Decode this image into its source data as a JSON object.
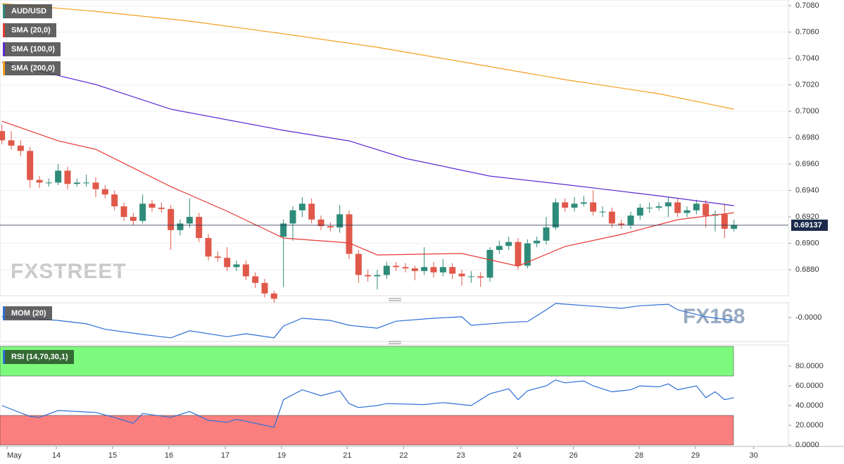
{
  "chart_data": [
    {
      "type": "candlestick",
      "title": "AUD/USD",
      "watermark": "FXSTREET",
      "up_color": "#2e8b7a",
      "down_color": "#e0584a",
      "xlim": [
        -0.2,
        83.8
      ],
      "ylim": [
        0.68603,
        0.70843
      ],
      "yticks": [
        {
          "value": 0.708,
          "label": "0.7080"
        },
        {
          "value": 0.706,
          "label": "0.7060"
        },
        {
          "value": 0.704,
          "label": "0.7040"
        },
        {
          "value": 0.702,
          "label": "0.7020"
        },
        {
          "value": 0.7,
          "label": "0.7000"
        },
        {
          "value": 0.698,
          "label": "0.6980"
        },
        {
          "value": 0.696,
          "label": "0.6960"
        },
        {
          "value": 0.694,
          "label": "0.6940"
        },
        {
          "value": 0.692,
          "label": "0.6920"
        },
        {
          "value": 0.69,
          "label": "0.6900"
        },
        {
          "value": 0.688,
          "label": "0.6880"
        }
      ],
      "grid": true,
      "last_price": 0.69137,
      "x": [
        0,
        1,
        2,
        3,
        4,
        5,
        6,
        7,
        8,
        9,
        10,
        11,
        12,
        13,
        14,
        15,
        16,
        17,
        18,
        19,
        20,
        21,
        22,
        23,
        24,
        25,
        26,
        27,
        28,
        29,
        30,
        31,
        32,
        33,
        34,
        35,
        36,
        37,
        38,
        39,
        40,
        41,
        42,
        43,
        44,
        45,
        46,
        47,
        48,
        49,
        50,
        51,
        52,
        53,
        54,
        55,
        56,
        57,
        58,
        59,
        60,
        61,
        62,
        63,
        64,
        65,
        66,
        67,
        68,
        69,
        70,
        71,
        72,
        73,
        74,
        75,
        76,
        77,
        78
      ],
      "open": [
        0.6985,
        0.6978,
        0.6974,
        0.697,
        0.6948,
        0.6946,
        0.6946,
        0.6955,
        0.6945,
        0.6946,
        0.6946,
        0.6941,
        0.6937,
        0.6928,
        0.692,
        0.6917,
        0.693,
        0.6927,
        0.6926,
        0.691,
        0.6915,
        0.692,
        0.6904,
        0.689,
        0.6889,
        0.6882,
        0.6884,
        0.6875,
        0.687,
        0.6862,
        0.6905,
        0.6915,
        0.6925,
        0.693,
        0.6918,
        0.6913,
        0.6912,
        0.6922,
        0.6892,
        0.6876,
        0.6875,
        0.6876,
        0.6883,
        0.6882,
        0.6881,
        0.6879,
        0.6882,
        0.6878,
        0.6882,
        0.6877,
        0.6875,
        0.6875,
        0.6874,
        0.6895,
        0.6898,
        0.6901,
        0.6883,
        0.69,
        0.6902,
        0.6912,
        0.6931,
        0.6927,
        0.693,
        0.6931,
        0.6924,
        0.6924,
        0.6915,
        0.6914,
        0.6921,
        0.6927,
        0.6927,
        0.6928,
        0.6931,
        0.6923,
        0.6925,
        0.693,
        0.6921,
        0.6922,
        0.6911
      ],
      "high": [
        0.699,
        0.6985,
        0.6978,
        0.6973,
        0.6951,
        0.6949,
        0.696,
        0.6958,
        0.6949,
        0.6952,
        0.695,
        0.6944,
        0.694,
        0.6931,
        0.6923,
        0.6937,
        0.6933,
        0.6931,
        0.6929,
        0.6918,
        0.6934,
        0.6923,
        0.6907,
        0.6894,
        0.6897,
        0.6887,
        0.6887,
        0.6878,
        0.6873,
        0.6864,
        0.6918,
        0.6928,
        0.6935,
        0.6934,
        0.6921,
        0.6916,
        0.6929,
        0.6925,
        0.6895,
        0.688,
        0.688,
        0.6886,
        0.6886,
        0.6885,
        0.6883,
        0.6897,
        0.6886,
        0.6888,
        0.6885,
        0.688,
        0.6879,
        0.6878,
        0.6897,
        0.6902,
        0.6905,
        0.6904,
        0.6903,
        0.6905,
        0.692,
        0.6934,
        0.6934,
        0.6935,
        0.6936,
        0.694,
        0.6928,
        0.6927,
        0.6918,
        0.6924,
        0.693,
        0.6931,
        0.6931,
        0.6935,
        0.6934,
        0.6928,
        0.6933,
        0.6933,
        0.6925,
        0.693,
        0.6918
      ],
      "low": [
        0.6975,
        0.6971,
        0.6966,
        0.6942,
        0.6942,
        0.6943,
        0.6944,
        0.6941,
        0.6943,
        0.6943,
        0.6935,
        0.6934,
        0.6925,
        0.6917,
        0.6914,
        0.6915,
        0.6924,
        0.6923,
        0.6895,
        0.6906,
        0.6912,
        0.6901,
        0.6887,
        0.6886,
        0.6879,
        0.6879,
        0.6872,
        0.6866,
        0.6859,
        0.6855,
        0.6867,
        0.6902,
        0.692,
        0.6915,
        0.691,
        0.6909,
        0.6908,
        0.6888,
        0.687,
        0.6871,
        0.6865,
        0.6873,
        0.6879,
        0.6878,
        0.6872,
        0.6876,
        0.6874,
        0.6875,
        0.6873,
        0.6868,
        0.687,
        0.6867,
        0.6871,
        0.6892,
        0.6895,
        0.688,
        0.6881,
        0.6897,
        0.6899,
        0.691,
        0.6924,
        0.6924,
        0.6928,
        0.6921,
        0.692,
        0.6912,
        0.6911,
        0.6911,
        0.6918,
        0.6923,
        0.6925,
        0.692,
        0.692,
        0.692,
        0.6922,
        0.6912,
        0.6909,
        0.6904,
        0.6909
      ],
      "close": [
        0.6978,
        0.6974,
        0.697,
        0.6948,
        0.6946,
        0.6946,
        0.6955,
        0.6945,
        0.6946,
        0.6946,
        0.6941,
        0.6937,
        0.6928,
        0.692,
        0.6917,
        0.693,
        0.6927,
        0.6926,
        0.691,
        0.6915,
        0.692,
        0.6904,
        0.689,
        0.6889,
        0.6882,
        0.6884,
        0.6875,
        0.687,
        0.6862,
        0.6858,
        0.6915,
        0.6925,
        0.693,
        0.6918,
        0.6913,
        0.6912,
        0.6922,
        0.6892,
        0.6876,
        0.6875,
        0.6876,
        0.6883,
        0.6882,
        0.6881,
        0.6879,
        0.6882,
        0.6878,
        0.6882,
        0.6877,
        0.6875,
        0.6875,
        0.6874,
        0.6895,
        0.6898,
        0.6901,
        0.6883,
        0.69,
        0.6902,
        0.6912,
        0.6931,
        0.6927,
        0.693,
        0.6931,
        0.6924,
        0.6924,
        0.6915,
        0.6914,
        0.6921,
        0.6927,
        0.6927,
        0.6928,
        0.6931,
        0.6923,
        0.6925,
        0.693,
        0.6921,
        0.6922,
        0.6911,
        0.6914
      ],
      "series": [
        {
          "name": "SMA (20,0)",
          "color": "#e53935",
          "x": [
            0,
            6,
            10,
            18,
            24,
            30,
            37,
            40,
            49,
            55,
            60,
            66,
            72,
            78
          ],
          "values": [
            0.69925,
            0.69776,
            0.69712,
            0.69429,
            0.69243,
            0.6904,
            0.69003,
            0.68912,
            0.68923,
            0.68827,
            0.68976,
            0.69067,
            0.69179,
            0.69232
          ]
        },
        {
          "name": "SMA (100,0)",
          "color": "#5b2bd1",
          "x": [
            0,
            10,
            18,
            30,
            37,
            43,
            52,
            60,
            70,
            78
          ],
          "values": [
            0.70373,
            0.70203,
            0.70016,
            0.69856,
            0.69776,
            0.69643,
            0.69509,
            0.69445,
            0.6936,
            0.69285
          ]
        },
        {
          "name": "SMA (200,0)",
          "color": "#f5a020",
          "x": [
            0,
            10,
            20,
            30,
            40,
            50,
            60,
            70,
            78
          ],
          "values": [
            0.70816,
            0.70757,
            0.70683,
            0.70587,
            0.70485,
            0.70363,
            0.7024,
            0.70133,
            0.70016
          ]
        }
      ]
    },
    {
      "type": "line",
      "title": "MOM (20)",
      "watermark": "FX168",
      "color": "#2f6fd6",
      "xlim": [
        -0.2,
        83.8
      ],
      "ylim": [
        -0.0065,
        0.004
      ],
      "yticks": [
        {
          "value": 0,
          "label": "-0.0000"
        }
      ],
      "x": [
        0,
        3,
        6,
        9,
        11,
        15,
        18,
        20,
        24,
        26,
        29,
        30,
        32,
        35,
        37,
        40,
        42,
        46,
        49,
        50,
        54,
        56,
        58,
        59,
        64,
        66,
        68,
        71,
        72,
        75,
        78
      ],
      "values": [
        0.0002,
        -0.0002,
        -0.0008,
        -0.0017,
        -0.0032,
        -0.0046,
        -0.0055,
        -0.0036,
        -0.0052,
        -0.0044,
        -0.0055,
        -0.0023,
        -0.0002,
        -0.0008,
        -0.0021,
        -0.0029,
        -0.001,
        -0.0002,
        0.0002,
        -0.0021,
        -0.0013,
        -0.0011,
        0.0021,
        0.0038,
        0.0029,
        0.0025,
        0.0032,
        0.0036,
        0.0021,
        0.0002,
        -0.0008
      ]
    },
    {
      "type": "line",
      "title": "RSI (14,70,30,1)",
      "color": "#2f6fd6",
      "xlim": [
        -0.2,
        83.8
      ],
      "ylim": [
        0,
        100
      ],
      "yticks": [
        {
          "value": 80,
          "label": "80.0000"
        },
        {
          "value": 60,
          "label": "60.0000"
        },
        {
          "value": 40,
          "label": "40.0000"
        },
        {
          "value": 20,
          "label": "20.0000"
        },
        {
          "value": 0,
          "label": "0.0000"
        }
      ],
      "bands": [
        {
          "from": 70,
          "to": 100,
          "color": "#7dfa7d"
        },
        {
          "from": 0,
          "to": 30,
          "color": "#fb7f7f"
        }
      ],
      "xticks": [
        {
          "value": 0.55,
          "label": "May"
        },
        {
          "value": 5.8,
          "label": "14"
        },
        {
          "value": 11.8,
          "label": "15"
        },
        {
          "value": 17.8,
          "label": "16"
        },
        {
          "value": 23.8,
          "label": "17"
        },
        {
          "value": 29.8,
          "label": "19"
        },
        {
          "value": 36.8,
          "label": "21"
        },
        {
          "value": 42.8,
          "label": "22"
        },
        {
          "value": 48.9,
          "label": "23"
        },
        {
          "value": 54.9,
          "label": "24"
        },
        {
          "value": 60.9,
          "label": "26"
        },
        {
          "value": 67.9,
          "label": "28"
        },
        {
          "value": 73.9,
          "label": "29"
        },
        {
          "value": 80.1,
          "label": "30"
        }
      ],
      "x": [
        0,
        3,
        4,
        6,
        10,
        12,
        14,
        15,
        18,
        20,
        22,
        24,
        25,
        29,
        30,
        32,
        34,
        36,
        37,
        38,
        40,
        41,
        45,
        47,
        50,
        52,
        54,
        55,
        56,
        58,
        59,
        60,
        62,
        63,
        65,
        67,
        68,
        70,
        71,
        72,
        74,
        75,
        76,
        77,
        78
      ],
      "values": [
        40,
        29,
        28,
        35,
        33,
        28,
        22,
        32,
        28,
        34,
        25,
        23,
        26,
        18,
        46,
        56,
        50,
        55,
        42,
        38,
        40,
        42,
        41,
        43,
        40,
        52,
        57,
        46,
        55,
        60,
        66,
        63,
        65,
        60,
        54,
        56,
        60,
        59,
        62,
        56,
        60,
        48,
        54,
        46,
        48
      ]
    }
  ]
}
